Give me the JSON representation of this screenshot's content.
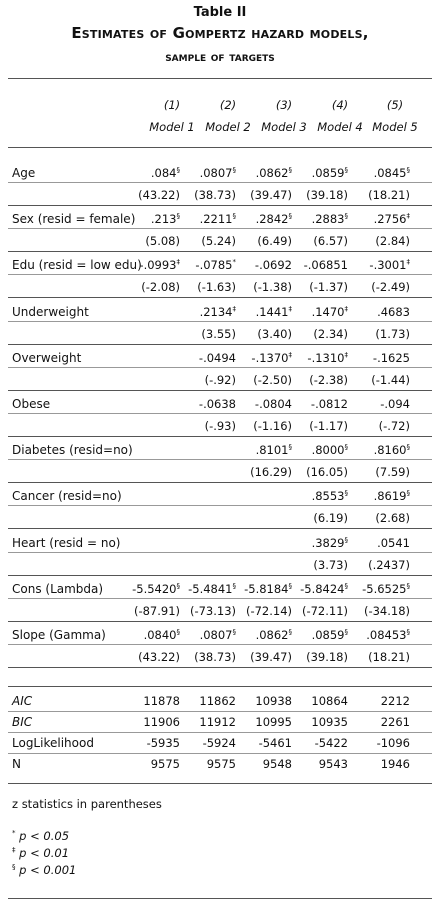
{
  "title": {
    "line1": "Table II",
    "line2": "Estimates of Gompertz hazard models,",
    "line3": "sample of targets"
  },
  "columns": [
    {
      "num": "(1)",
      "name": "Model 1"
    },
    {
      "num": "(2)",
      "name": "Model 2"
    },
    {
      "num": "(3)",
      "name": "Model 3"
    },
    {
      "num": "(4)",
      "name": "Model 4"
    },
    {
      "num": "(5)",
      "name": "Model 5"
    }
  ],
  "rows": [
    {
      "label": "Age",
      "coef": [
        ".084§",
        ".0807§",
        ".0862§",
        ".0859§",
        ".0845§"
      ],
      "z": [
        "(43.22)",
        "(38.73)",
        "(39.47)",
        "(39.18)",
        "(18.21)"
      ]
    },
    {
      "label": "Sex (resid = female)",
      "coef": [
        ".213§",
        ".2211§",
        ".2842§",
        ".2883§",
        ".2756‡"
      ],
      "z": [
        "(5.08)",
        "(5.24)",
        "(6.49)",
        "(6.57)",
        "(2.84)"
      ]
    },
    {
      "label": "Edu (resid = low edu)",
      "coef": [
        "-.0993‡",
        "-.0785*",
        "-.0692",
        "-.06851",
        "-.3001‡"
      ],
      "z": [
        "(-2.08)",
        "(-1.63)",
        "(-1.38)",
        "(-1.37)",
        "(-2.49)"
      ]
    },
    {
      "label": "Underweight",
      "coef": [
        "",
        ".2134‡",
        ".1441‡",
        ".1470‡",
        ".4683"
      ],
      "z": [
        "",
        "(3.55)",
        "(3.40)",
        "(2.34)",
        "(1.73)"
      ]
    },
    {
      "label": "Overweight",
      "coef": [
        "",
        "-.0494",
        "-.1370‡",
        "-.1310‡",
        "-.1625"
      ],
      "z": [
        "",
        "(-.92)",
        "(-2.50)",
        "(-2.38)",
        "(-1.44)"
      ]
    },
    {
      "label": "Obese",
      "coef": [
        "",
        "-.0638",
        "-.0804",
        "-.0812",
        "-.094"
      ],
      "z": [
        "",
        "(-.93)",
        "(-1.16)",
        "(-1.17)",
        "(-.72)"
      ]
    },
    {
      "label": "Diabetes (resid=no)",
      "coef": [
        "",
        "",
        ".8101§",
        ".8000§",
        ".8160§"
      ],
      "z": [
        "",
        "",
        "(16.29)",
        "(16.05)",
        "(7.59)"
      ]
    },
    {
      "label": "Cancer (resid=no)",
      "coef": [
        "",
        "",
        "",
        ".8553§",
        ".8619§"
      ],
      "z": [
        "",
        "",
        "",
        "(6.19)",
        "(2.68)"
      ]
    },
    {
      "label": "Heart (resid = no)",
      "coef": [
        "",
        "",
        "",
        ".3829§",
        ".0541"
      ],
      "z": [
        "",
        "",
        "",
        "(3.73)",
        "(.2437)"
      ]
    },
    {
      "label": "Cons (Lambda)",
      "coef": [
        "-5.5420§",
        "-5.4841§",
        "-5.8184§",
        "-5.8424§",
        "-5.6525§"
      ],
      "z": [
        "(-87.91)",
        "(-73.13)",
        "(-72.14)",
        "(-72.11)",
        "(-34.18)"
      ]
    },
    {
      "label": "Slope (Gamma)",
      "coef": [
        ".0840§",
        ".0807§",
        ".0862§",
        ".0859§",
        ".08453§"
      ],
      "z": [
        "(43.22)",
        "(38.73)",
        "(39.47)",
        "(39.18)",
        "(18.21)"
      ]
    }
  ],
  "stats": [
    {
      "label": "AIC",
      "italic": true,
      "values": [
        "11878",
        "11862",
        "10938",
        "10864",
        "2212"
      ]
    },
    {
      "label": "BIC",
      "italic": true,
      "values": [
        "11906",
        "11912",
        "10995",
        "10935",
        "2261"
      ]
    },
    {
      "label": "LogLikelihood",
      "italic": false,
      "values": [
        "-5935",
        "-5924",
        "-5461",
        "-5422",
        "-1096"
      ]
    },
    {
      "label": "N",
      "italic": false,
      "values": [
        "9575",
        "9575",
        "9548",
        "9543",
        "1946"
      ]
    }
  ],
  "footnotes": {
    "z_note": "z statistics in parentheses",
    "sig": [
      {
        "mark": "*",
        "text": "p < 0.05"
      },
      {
        "mark": "‡",
        "text": "p < 0.01"
      },
      {
        "mark": "§",
        "text": "p < 0.001"
      }
    ]
  }
}
